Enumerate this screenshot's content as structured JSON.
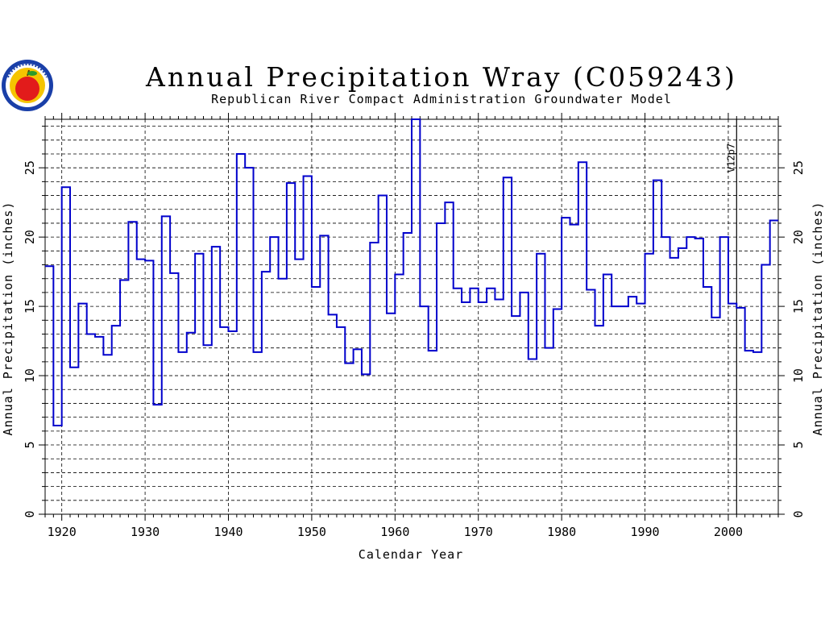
{
  "logo": {
    "name": "apple-seal-logo",
    "colors": {
      "ring": "#1a3fa8",
      "disc": "#f5c400",
      "apple": "#e21b1b",
      "leaf": "#2a9a2a"
    }
  },
  "chart_data": {
    "type": "line",
    "style": "step",
    "title": "Annual Precipitation Wray (C059243)",
    "subtitle": "Republican River Compact Administration Groundwater Model",
    "xlabel": "Calendar Year",
    "ylabel": "Annual Precipitation (inches)",
    "xlim": [
      1918,
      2006
    ],
    "ylim": [
      0,
      28.5
    ],
    "x_ticks": [
      1920,
      1930,
      1940,
      1950,
      1960,
      1970,
      1980,
      1990,
      2000
    ],
    "y_ticks": [
      0,
      5,
      10,
      15,
      20,
      25
    ],
    "y_minor_step": 1,
    "grid": "dashed",
    "mirror_right_axis": true,
    "line_color": "#0000cc",
    "annotation": {
      "text": "V12p7",
      "x": 2001
    },
    "series": [
      {
        "x": [
          1918,
          1919,
          1920,
          1921,
          1922,
          1923,
          1924,
          1925,
          1926,
          1927,
          1928,
          1929,
          1930,
          1931,
          1932,
          1933,
          1934,
          1935,
          1936,
          1937,
          1938,
          1939,
          1940,
          1941,
          1942,
          1943,
          1944,
          1945,
          1946,
          1947,
          1948,
          1949,
          1950,
          1951,
          1952,
          1953,
          1954,
          1955,
          1956,
          1957,
          1958,
          1959,
          1960,
          1961,
          1962,
          1963,
          1964,
          1965,
          1966,
          1967,
          1968,
          1969,
          1970,
          1971,
          1972,
          1973,
          1974,
          1975,
          1976,
          1977,
          1978,
          1979,
          1980,
          1981,
          1982,
          1983,
          1984,
          1985,
          1986,
          1987,
          1988,
          1989,
          1990,
          1991,
          1992,
          1993,
          1994,
          1995,
          1996,
          1997,
          1998,
          1999,
          2000,
          2001,
          2002,
          2003,
          2004,
          2005
        ],
        "y": [
          17.9,
          6.4,
          23.6,
          10.6,
          15.2,
          13.0,
          12.8,
          11.5,
          13.6,
          16.9,
          21.1,
          18.4,
          18.3,
          7.9,
          21.5,
          17.4,
          11.7,
          13.1,
          18.8,
          12.2,
          19.3,
          13.5,
          13.2,
          26.0,
          25.0,
          11.7,
          17.5,
          20.0,
          17.0,
          23.9,
          18.4,
          24.4,
          16.4,
          20.1,
          14.4,
          13.5,
          10.9,
          11.9,
          10.1,
          19.6,
          23.0,
          14.5,
          17.3,
          20.3,
          28.5,
          15.0,
          11.8,
          21.0,
          22.5,
          16.3,
          15.3,
          16.3,
          15.3,
          16.3,
          15.5,
          24.3,
          14.3,
          16.0,
          11.2,
          18.8,
          12.0,
          14.8,
          21.4,
          20.9,
          25.4,
          16.2,
          13.6,
          17.3,
          15.0,
          15.0,
          15.7,
          15.2,
          18.8,
          24.1,
          20.0,
          18.5,
          19.2,
          20.0,
          19.9,
          16.4,
          14.2,
          20.0,
          15.2,
          14.9,
          11.8,
          11.7,
          18.0,
          21.2
        ]
      }
    ]
  }
}
